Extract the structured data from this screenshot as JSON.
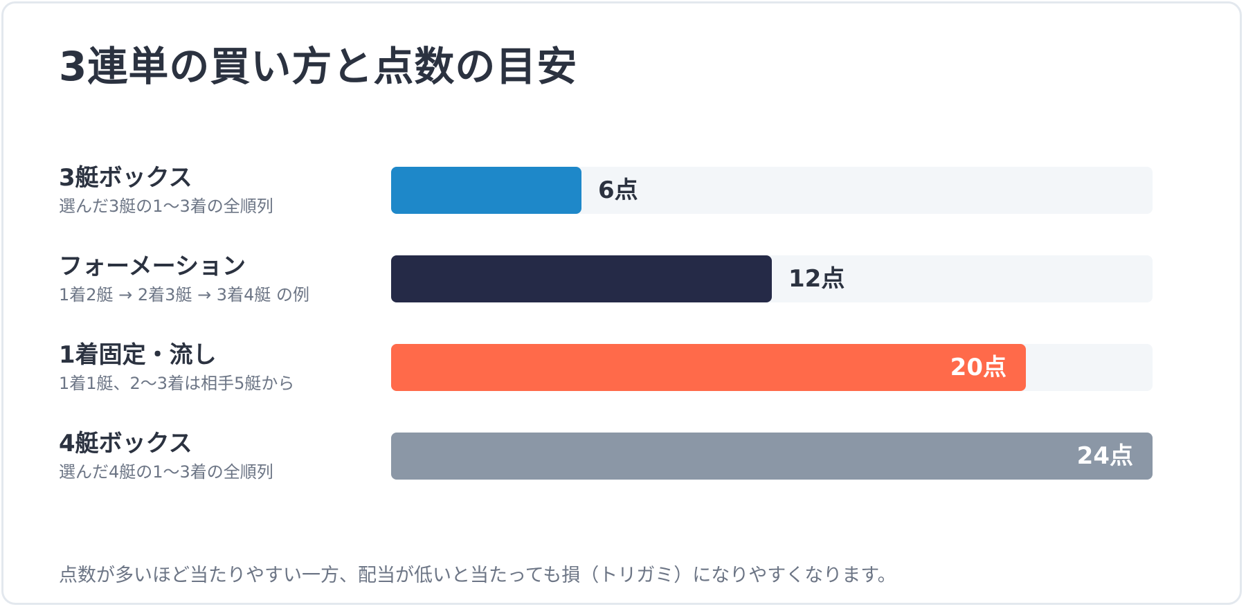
{
  "title": "3連単の買い方と点数の目安",
  "chart_data": {
    "type": "bar",
    "orientation": "horizontal",
    "categories": [
      "3艇ボックス",
      "フォーメーション",
      "1着固定・流し",
      "4艇ボックス"
    ],
    "descriptions": [
      "選んだ3艇の1〜3着の全順列",
      "1着2艇 → 2着3艇 → 3着4艇 の例",
      "1着1艇、2〜3着は相手5艇から",
      "選んだ4艇の1〜3着の全順列"
    ],
    "values": [
      6,
      12,
      20,
      24
    ],
    "value_labels": [
      "6点",
      "12点",
      "20点",
      "24点"
    ],
    "colors": [
      "#1e88c9",
      "#252a47",
      "#ff6a4a",
      "#8b97a6"
    ],
    "xlim": [
      0,
      24
    ],
    "grid": false
  },
  "footnote": "点数が多いほど当たりやすい一方、配当が低いと当たっても損（トリガミ）になりやすくなります。"
}
